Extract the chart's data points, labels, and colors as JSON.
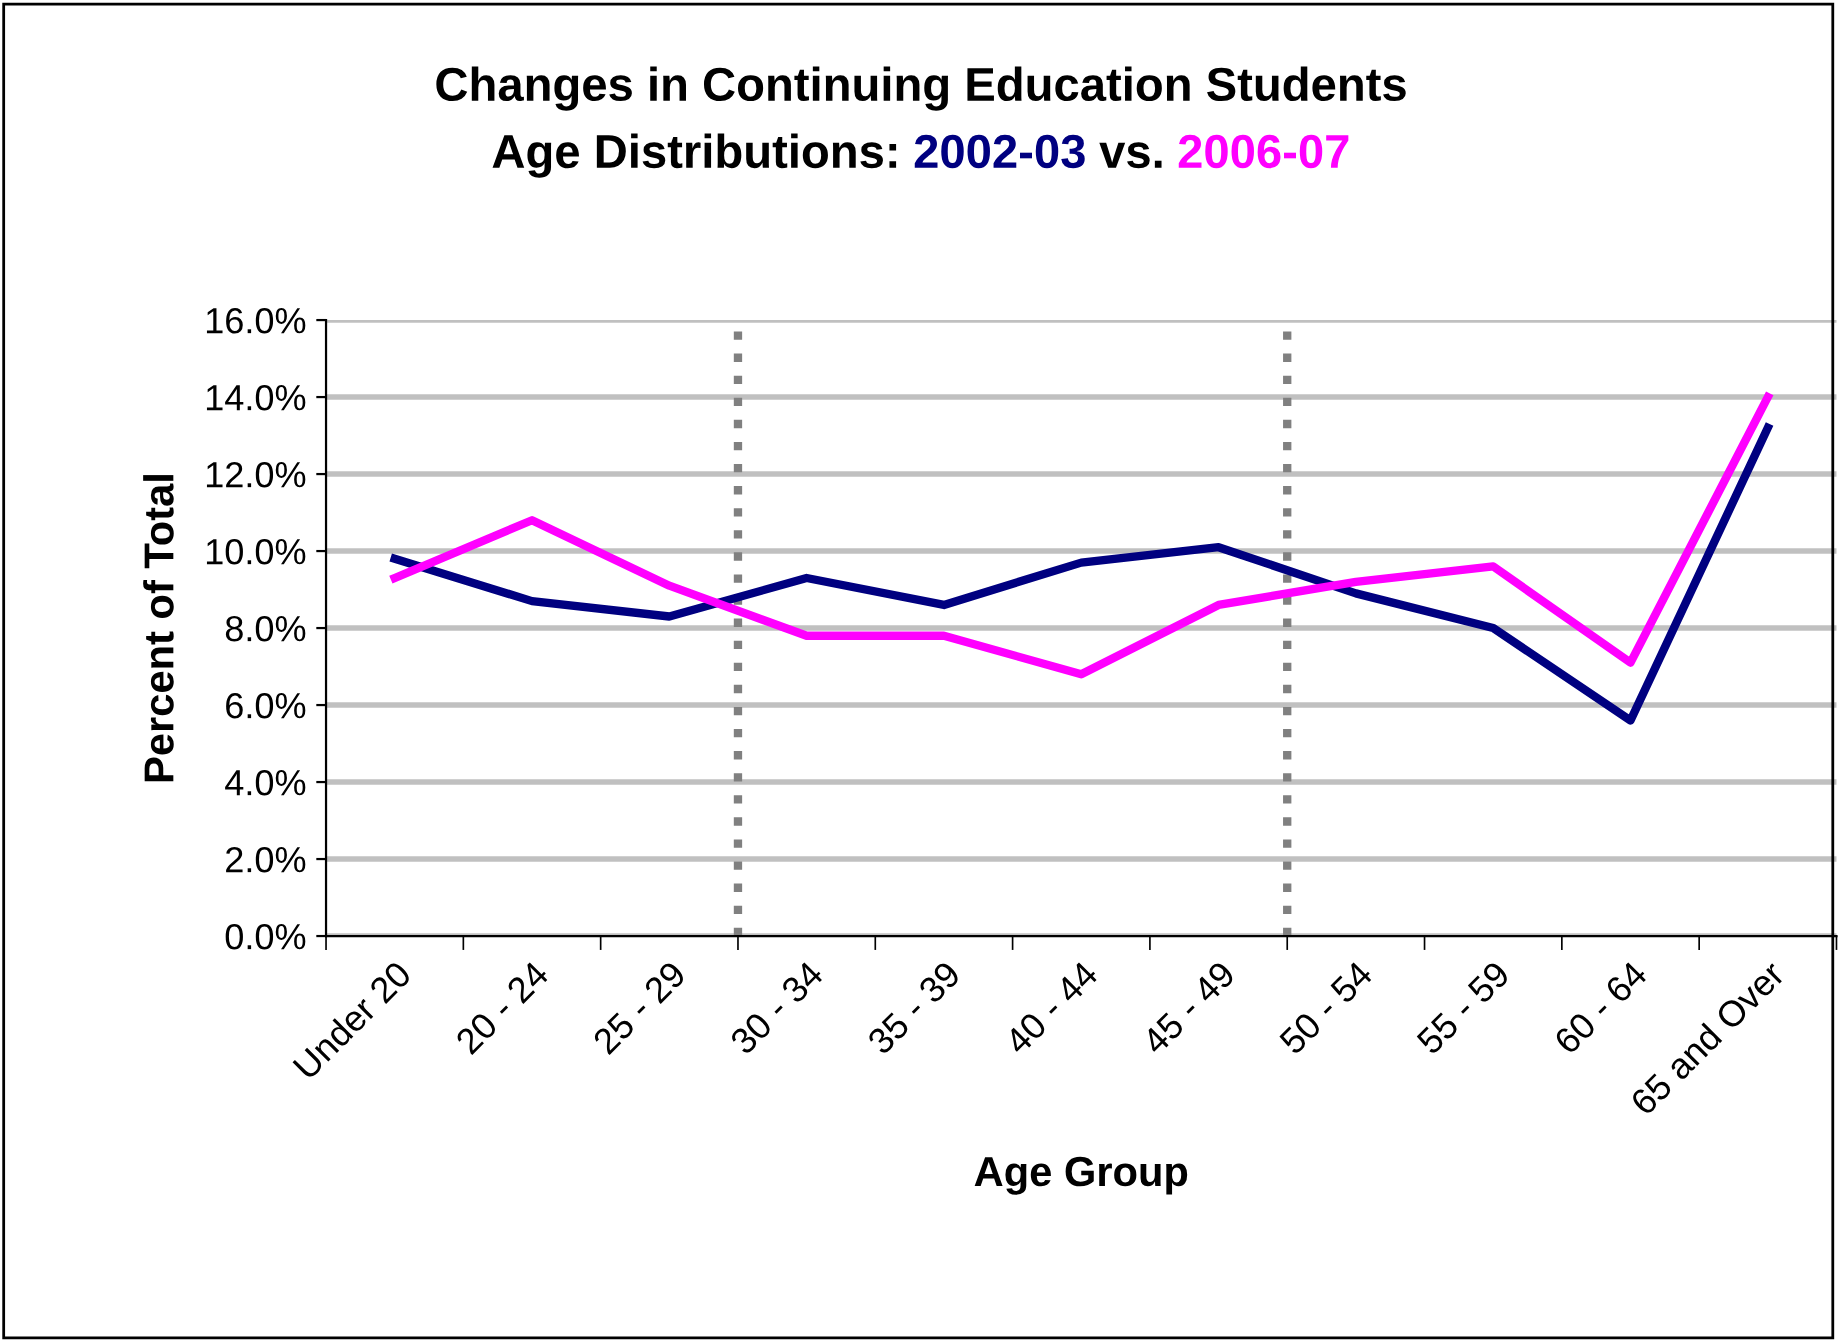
{
  "chart_data": {
    "type": "line",
    "title": "Changes in Continuing Education Students",
    "subtitle": "Age Distributions:",
    "annotations": [
      "vs."
    ],
    "xlabel": "Age Group",
    "ylabel": "Percent of Total",
    "categories": [
      "Under 20",
      "20 - 24",
      "25 - 29",
      "30 - 34",
      "35 - 39",
      "40 - 44",
      "45 - 49",
      "50 - 54",
      "55 - 59",
      "60 - 64",
      "65 and Over"
    ],
    "series": [
      {
        "name": "2002-03",
        "color": "#000080",
        "values": [
          9.8,
          8.7,
          8.3,
          9.3,
          8.6,
          9.7,
          10.1,
          8.9,
          8.0,
          5.6,
          13.2
        ]
      },
      {
        "name": "2006-07",
        "color": "#ff00ff",
        "values": [
          9.3,
          10.8,
          9.1,
          7.8,
          7.8,
          6.8,
          8.6,
          9.2,
          9.6,
          7.1,
          14.0
        ]
      }
    ],
    "ylim": [
      0,
      16
    ],
    "yticks": [
      {
        "value": 0,
        "label": "0.0%"
      },
      {
        "value": 2,
        "label": "2.0%"
      },
      {
        "value": 4,
        "label": "4.0%"
      },
      {
        "value": 6,
        "label": "6.0%"
      },
      {
        "value": 8,
        "label": "8.0%"
      },
      {
        "value": 10,
        "label": "10.0%"
      },
      {
        "value": 12,
        "label": "12.0%"
      },
      {
        "value": 14,
        "label": "14.0%"
      },
      {
        "value": 16,
        "label": "16.0%"
      }
    ],
    "grid": "y",
    "legend": false,
    "marker": "none",
    "line_style": "solid"
  }
}
